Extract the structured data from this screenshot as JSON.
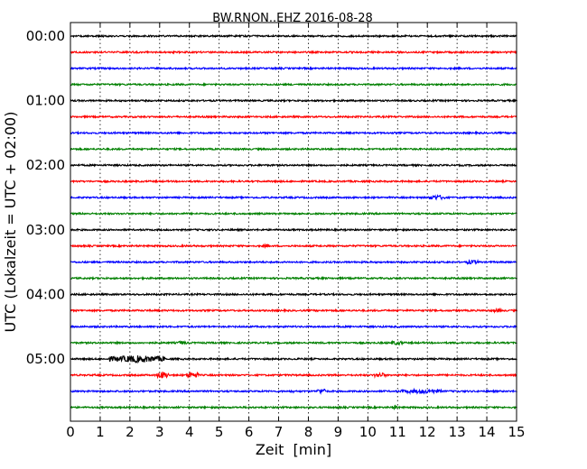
{
  "chart_data": {
    "type": "line",
    "title": "BW.RNON..EHZ 2016-08-28",
    "xlabel": "Zeit  [min]",
    "ylabel": "UTC (Lokalzeit = UTC + 02:00)",
    "xlim": [
      0,
      15
    ],
    "x_ticks": [
      "0",
      "1",
      "2",
      "3",
      "4",
      "5",
      "6",
      "7",
      "8",
      "9",
      "10",
      "11",
      "12",
      "13",
      "14",
      "15"
    ],
    "y_ticks": [
      "00:00",
      "01:00",
      "02:00",
      "03:00",
      "04:00",
      "05:00"
    ],
    "grid": "vertical dotted",
    "trace_interval_minutes": 15,
    "color_cycle": [
      "#000000",
      "#ff0000",
      "#0000ff",
      "#008000"
    ],
    "traces": [
      "00:00",
      "00:15",
      "00:30",
      "00:45",
      "01:00",
      "01:15",
      "01:30",
      "01:45",
      "02:00",
      "02:15",
      "02:30",
      "02:45",
      "03:00",
      "03:15",
      "03:30",
      "03:45",
      "04:00",
      "04:15",
      "04:30",
      "04:45",
      "05:00",
      "05:15",
      "05:30",
      "05:45"
    ],
    "events": [
      {
        "trace": "05:00",
        "start_min": 1.3,
        "end_min": 3.2,
        "amplitude": 1.0
      },
      {
        "trace": "05:15",
        "start_min": 2.9,
        "end_min": 3.3,
        "amplitude": 1.0
      },
      {
        "trace": "05:15",
        "start_min": 3.9,
        "end_min": 4.3,
        "amplitude": 0.9
      },
      {
        "trace": "05:15",
        "start_min": 10.2,
        "end_min": 10.6,
        "amplitude": 0.6
      },
      {
        "trace": "05:30",
        "start_min": 8.3,
        "end_min": 8.6,
        "amplitude": 0.7
      },
      {
        "trace": "05:30",
        "start_min": 11.1,
        "end_min": 12.5,
        "amplitude": 0.5
      },
      {
        "trace": "05:30",
        "start_min": 7.4,
        "end_min": 7.5,
        "amplitude": 0.4
      },
      {
        "trace": "02:30",
        "start_min": 12.0,
        "end_min": 12.6,
        "amplitude": 0.6
      },
      {
        "trace": "03:30",
        "start_min": 13.3,
        "end_min": 13.7,
        "amplitude": 0.5
      },
      {
        "trace": "04:45",
        "start_min": 10.8,
        "end_min": 11.2,
        "amplitude": 0.5
      },
      {
        "trace": "04:45",
        "start_min": 3.6,
        "end_min": 3.9,
        "amplitude": 0.4
      },
      {
        "trace": "03:15",
        "start_min": 6.5,
        "end_min": 6.7,
        "amplitude": 0.4
      },
      {
        "trace": "04:15",
        "start_min": 14.2,
        "end_min": 14.5,
        "amplitude": 0.4
      },
      {
        "trace": "05:45",
        "start_min": 10.8,
        "end_min": 11.0,
        "amplitude": 0.4
      }
    ]
  }
}
